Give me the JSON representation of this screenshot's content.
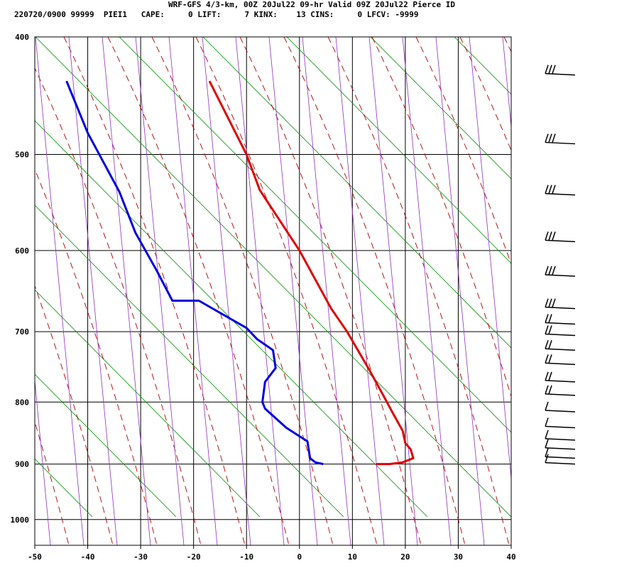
{
  "header": {
    "title": "WRF-GFS 4/3-km, 00Z 20Jul22 09-hr Valid 09Z 20Jul22 Pierce ID",
    "info": "220720/0900 99999  PIEI1   CAPE:     0 LIFT:     7 KINX:    13 CINS:     0 LFCV: -9999"
  },
  "chart_data": {
    "type": "line",
    "title": "WRF-GFS 4/3-km, 00Z 20Jul22 09-hr Valid 09Z 20Jul22 Pierce ID",
    "xlabel": "",
    "ylabel": "",
    "xlim": [
      -50,
      40
    ],
    "ylim": [
      1050,
      400
    ],
    "y_scale": "log",
    "x_ticks": [
      -50,
      -40,
      -30,
      -20,
      -10,
      0,
      10,
      20,
      30,
      40
    ],
    "y_ticks": [
      400,
      500,
      600,
      700,
      800,
      900,
      1000
    ],
    "grid": true,
    "series": [
      {
        "color": "#e00000",
        "points": [
          [
            -17,
            435
          ],
          [
            -10,
            500
          ],
          [
            -7.5,
            535
          ],
          [
            0,
            600
          ],
          [
            6,
            670
          ],
          [
            9,
            700
          ],
          [
            13,
            750
          ],
          [
            15.5,
            785
          ],
          [
            17.5,
            815
          ],
          [
            19.5,
            845
          ],
          [
            20,
            865
          ],
          [
            21,
            875
          ],
          [
            21.5,
            890
          ],
          [
            19.5,
            897
          ],
          [
            17,
            900
          ],
          [
            14.5,
            900
          ]
        ]
      },
      {
        "color": "#0000e0",
        "points": [
          [
            -44,
            435
          ],
          [
            -40,
            480
          ],
          [
            -34,
            537
          ],
          [
            -31,
            580
          ],
          [
            -27,
            623
          ],
          [
            -24,
            660
          ],
          [
            -19,
            660
          ],
          [
            -10,
            695
          ],
          [
            -8,
            710
          ],
          [
            -5,
            725
          ],
          [
            -4.5,
            750
          ],
          [
            -6.5,
            770
          ],
          [
            -7,
            800
          ],
          [
            -6.5,
            810
          ],
          [
            -2.5,
            840
          ],
          [
            1.5,
            862
          ],
          [
            2,
            890
          ],
          [
            3,
            897
          ],
          [
            4.5,
            900
          ]
        ]
      }
    ],
    "wind_barb_levels": [
      430,
      490,
      540,
      590,
      630,
      670,
      690,
      705,
      725,
      745,
      770,
      790,
      815,
      840,
      860,
      875,
      890,
      900
    ],
    "colors": {
      "isotherm": "#000000",
      "dry_adiabat": "#009000",
      "moist_adiabat": "#b00000",
      "mixing_ratio": "#9030c0",
      "temperature": "#e00000",
      "dewpoint": "#0000e0"
    }
  }
}
